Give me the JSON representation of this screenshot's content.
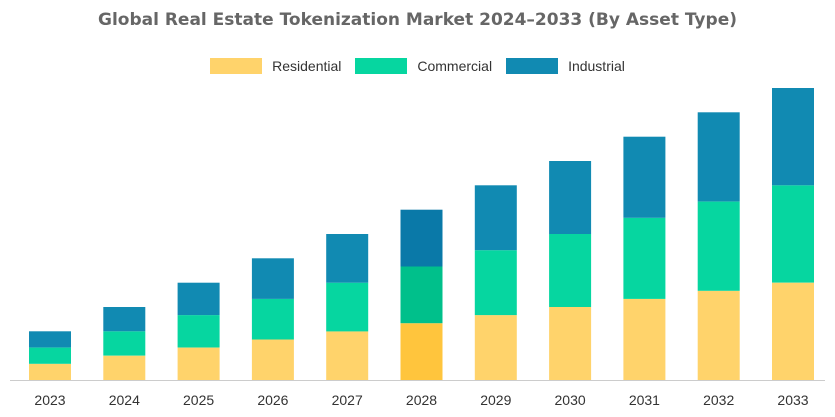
{
  "chart_data": {
    "type": "bar",
    "stacked": true,
    "title": "Global Real Estate Tokenization Market 2024–2033 (By Asset Type)",
    "xlabel": "",
    "ylabel": "",
    "categories": [
      "2023",
      "2024",
      "2025",
      "2026",
      "2027",
      "2028",
      "2029",
      "2030",
      "2031",
      "2032",
      "2033"
    ],
    "series": [
      {
        "name": "Residential",
        "color": "#FFD36B",
        "values": [
          2,
          3,
          4,
          5,
          6,
          7,
          8,
          9,
          10,
          11,
          12
        ]
      },
      {
        "name": "Commercial",
        "color": "#06D6A0",
        "values": [
          2,
          3,
          4,
          5,
          6,
          7,
          8,
          9,
          10,
          11,
          12
        ]
      },
      {
        "name": "Industrial",
        "color": "#118AB2",
        "values": [
          2,
          3,
          4,
          5,
          6,
          7,
          8,
          9,
          10,
          11,
          12
        ]
      }
    ],
    "highlight_category": "2028",
    "highlight_colors": [
      "#FFC53D",
      "#00C08B",
      "#0A79A8"
    ],
    "ylim": [
      0,
      36
    ],
    "legend_position": "top-center",
    "grid": false,
    "axis_line_color": "#CCCCCC"
  }
}
